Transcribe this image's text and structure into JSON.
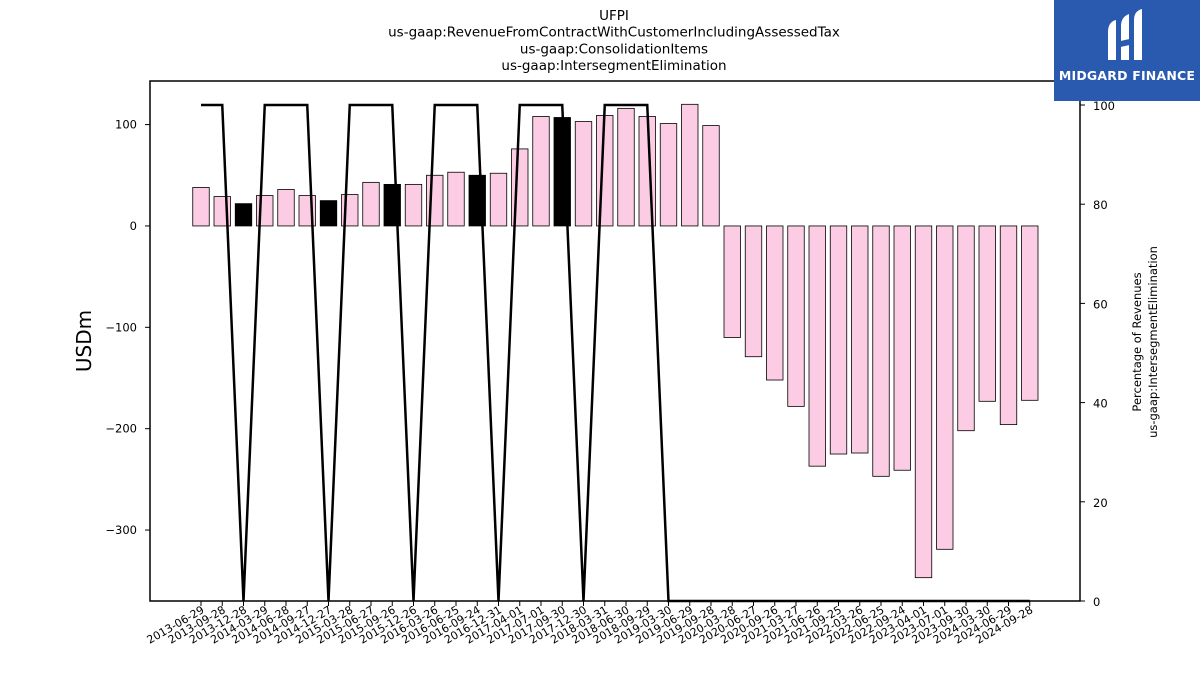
{
  "chart_data": {
    "type": "bar+line",
    "title_lines": [
      "UFPI",
      "us-gaap:RevenueFromContractWithCustomerIncludingAssessedTax",
      "us-gaap:ConsolidationItems",
      "us-gaap:IntersegmentElimination"
    ],
    "ylabel_left": "USDm",
    "ylabel_right_lines": [
      "Percentage of Revenues",
      "us-gaap:IntersegmentElimination"
    ],
    "ylim_left": [
      -370,
      143
    ],
    "ylim_right": [
      0,
      100
    ],
    "yticks_left": [
      100,
      0,
      -100,
      -200,
      -300
    ],
    "yticks_left_labels": [
      "100",
      "0",
      "−100",
      "−200",
      "−300"
    ],
    "yticks_right": [
      0,
      20,
      40,
      60,
      80,
      100
    ],
    "categories": [
      "2013-06-29",
      "2013-09-28",
      "2013-12-28",
      "2014-03-29",
      "2014-06-28",
      "2014-09-27",
      "2014-12-27",
      "2015-03-28",
      "2015-06-27",
      "2015-09-26",
      "2015-12-26",
      "2016-03-26",
      "2016-06-25",
      "2016-09-24",
      "2016-12-31",
      "2017-04-01",
      "2017-07-01",
      "2017-09-30",
      "2017-12-30",
      "2018-03-31",
      "2018-06-30",
      "2018-09-29",
      "2019-03-30",
      "2019-06-29",
      "2019-09-28",
      "2020-03-28",
      "2020-06-27",
      "2020-09-26",
      "2021-03-27",
      "2021-06-26",
      "2021-09-25",
      "2022-03-26",
      "2022-06-25",
      "2022-09-24",
      "2023-04-01",
      "2023-07-01",
      "2023-09-30",
      "2024-03-30",
      "2024-06-29",
      "2024-09-28"
    ],
    "series": [
      {
        "type": "bar",
        "values": [
          38,
          29,
          22,
          30,
          36,
          30,
          25,
          31,
          43,
          41,
          41,
          50,
          53,
          50,
          52,
          76,
          108,
          107,
          103,
          109,
          116,
          108,
          101,
          120,
          99,
          -110,
          -129,
          -152,
          -178,
          -237,
          -225,
          -224,
          -247,
          -241,
          -347,
          -319,
          -202,
          -173,
          -196,
          -172
        ],
        "highlight_indices": [
          2,
          6,
          9,
          13,
          17
        ],
        "color": "#fccce4",
        "highlight_color": "#000000",
        "edge_color": "#000000"
      },
      {
        "type": "line",
        "axis": "right",
        "values": [
          100,
          100,
          0,
          100,
          100,
          100,
          0,
          100,
          100,
          100,
          0,
          100,
          100,
          100,
          0,
          100,
          100,
          100,
          0,
          100,
          100,
          100,
          0,
          0,
          0,
          0,
          0,
          0,
          0,
          0,
          0,
          0,
          0,
          0,
          0,
          0,
          0,
          0,
          0,
          0
        ],
        "color": "#000000"
      }
    ]
  },
  "logo": {
    "text": "MIDGARD FINANCE",
    "background": "#2a5ab0"
  }
}
